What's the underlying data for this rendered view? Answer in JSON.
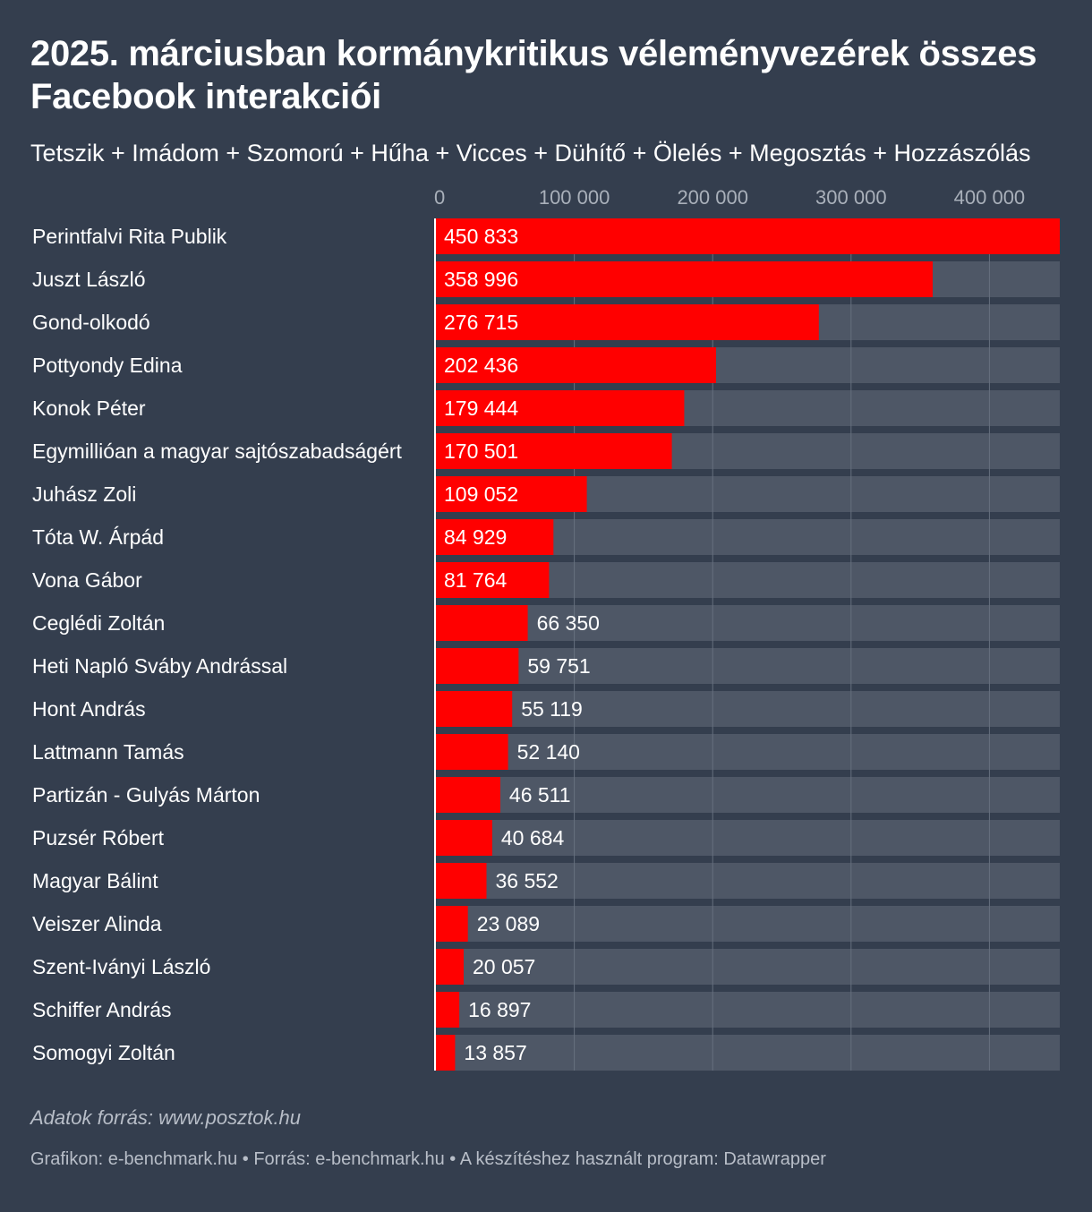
{
  "chart_data": {
    "type": "bar",
    "orientation": "horizontal",
    "title": "2025. márciusban kormánykritikus véleményvezérek összes Facebook interakciói",
    "subtitle": "Tetszik + Imádom + Szomorú + Hűha + Vicces + Dühítő + Ölelés + Megosztás + Hozzászólás",
    "xlim": [
      0,
      450833
    ],
    "ticks": [
      0,
      100000,
      200000,
      300000,
      400000
    ],
    "tick_labels": [
      "0",
      "100 000",
      "200 000",
      "300 000",
      "400 000"
    ],
    "grid": true,
    "categories": [
      "Perintfalvi Rita Publik",
      "Juszt László",
      "Gond-olkodó",
      "Pottyondy Edina",
      "Konok Péter",
      "Egymillióan a magyar sajtószabadságért",
      "Juhász Zoli",
      "Tóta W. Árpád",
      "Vona Gábor",
      "Ceglédi Zoltán",
      "Heti Napló Sváby Andrással",
      "Hont András",
      "Lattmann Tamás",
      "Partizán - Gulyás Márton",
      "Puzsér Róbert",
      "Magyar Bálint",
      "Veiszer Alinda",
      "Szent-Iványi László",
      "Schiffer András",
      "Somogyi Zoltán"
    ],
    "values": [
      450833,
      358996,
      276715,
      202436,
      179444,
      170501,
      109052,
      84929,
      81764,
      66350,
      59751,
      55119,
      52140,
      46511,
      40684,
      36552,
      23089,
      20057,
      16897,
      13857
    ],
    "value_labels": [
      "450 833",
      "358 996",
      "276 715",
      "202 436",
      "179 444",
      "170 501",
      "109 052",
      "84 929",
      "81 764",
      "66 350",
      "59 751",
      "55 119",
      "52 140",
      "46 511",
      "40 684",
      "36 552",
      "23 089",
      "20 057",
      "16 897",
      "13 857"
    ]
  },
  "notes": {
    "data_source": "Adatok forrás: www.posztok.hu",
    "credits": "Grafikon: e-benchmark.hu • Forrás: e-benchmark.hu • A készítéshez használt program: Datawrapper"
  },
  "colors": {
    "background": "#343e4e",
    "bar": "#ff0000",
    "track": "#4e5766",
    "grid": "#66707e",
    "tick_text": "#a9b0ba",
    "text": "#ffffff"
  }
}
